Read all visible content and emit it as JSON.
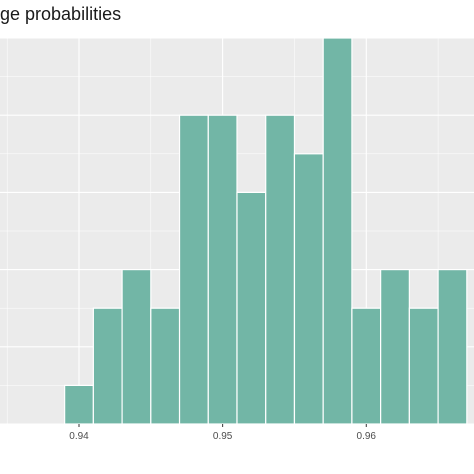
{
  "chart_data": {
    "type": "bar",
    "title": "ge probabilities",
    "xlabel": "",
    "ylabel": "",
    "x_ticks": [
      0.94,
      0.95,
      0.96
    ],
    "x_tick_labels": [
      "0.94",
      "0.95",
      "0.96"
    ],
    "xlim": [
      0.9345,
      0.9675
    ],
    "ylim": [
      0,
      10
    ],
    "bin_width": 0.002,
    "bin_starts": [
      0.939,
      0.941,
      0.943,
      0.945,
      0.947,
      0.949,
      0.951,
      0.953,
      0.955,
      0.957,
      0.959,
      0.961,
      0.963,
      0.965
    ],
    "values": [
      1,
      3,
      4,
      3,
      8,
      8,
      6,
      8,
      7,
      10,
      3,
      4,
      3,
      4
    ],
    "grid": true,
    "bar_color": "#72b6a6",
    "panel_color": "#ebebeb",
    "grid_color": "#ffffff"
  }
}
